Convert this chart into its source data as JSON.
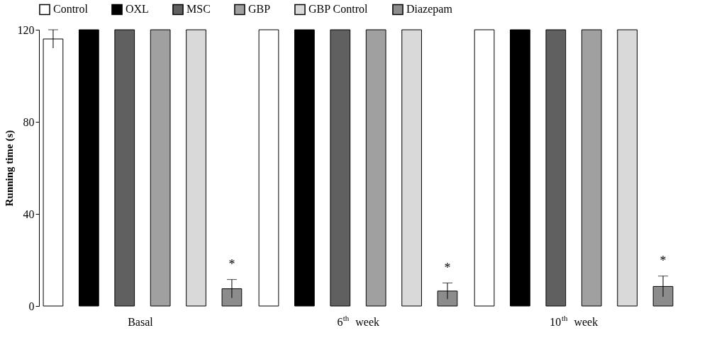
{
  "chart_data": {
    "type": "bar",
    "ylabel": "Running time (s)",
    "categories": [
      "Basal",
      "6$^{th}$ week",
      "10$^{th}$ week"
    ],
    "series": [
      {
        "name": "Control",
        "color": "#ffffff",
        "values": [
          116,
          120,
          120
        ],
        "errors": [
          4,
          null,
          null
        ]
      },
      {
        "name": "OXL",
        "color": "#000000",
        "values": [
          120,
          120,
          120
        ]
      },
      {
        "name": "MSC",
        "color": "#606060",
        "values": [
          120,
          120,
          120
        ]
      },
      {
        "name": "GBP",
        "color": "#a0a0a0",
        "values": [
          120,
          120,
          120
        ]
      },
      {
        "name": "GBP Control",
        "color": "#d9d9d9",
        "values": [
          120,
          120,
          120
        ]
      },
      {
        "name": "Diazepam",
        "color": "#8c8c8c",
        "values": [
          7.5,
          6.5,
          8.5
        ],
        "errors": [
          4,
          3.5,
          4.5
        ]
      }
    ],
    "annotations": [
      "*",
      "*",
      "*"
    ],
    "ylim": [
      0,
      120
    ],
    "yticks": [
      0,
      40,
      80,
      120
    ],
    "grid": false,
    "legend": "top"
  }
}
